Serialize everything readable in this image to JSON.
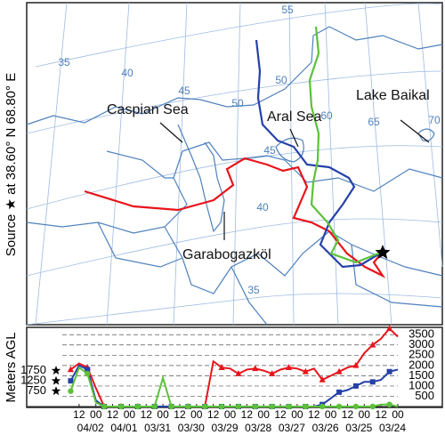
{
  "source_label": "Source ★ at 38.60° N 68.80° E",
  "map": {
    "place_labels": [
      "Caspian Sea",
      "Aral Sea",
      "Lake Baikal",
      "Garabogazköl"
    ],
    "grid_labels": [
      "35",
      "40",
      "45",
      "50",
      "55",
      "50",
      "45",
      "60",
      "65",
      "70",
      "40",
      "35"
    ]
  },
  "chart_data": {
    "type": "line",
    "y_label": "Meters AGL",
    "start_heights": [
      750,
      1250,
      1750
    ],
    "x": [
      6,
      12,
      18,
      24,
      30,
      36,
      42,
      48,
      54,
      60,
      66,
      72,
      78,
      84,
      90,
      96,
      102,
      108,
      114,
      120,
      126,
      132,
      138,
      144,
      150,
      156,
      162,
      168,
      174,
      180,
      186,
      192,
      198,
      204,
      210,
      216,
      222,
      228,
      234,
      240
    ],
    "series": [
      {
        "name": "red",
        "color": "#e8141b",
        "marker": "triangle",
        "values": [
          1800,
          2100,
          1900,
          900,
          0,
          0,
          0,
          0,
          0,
          0,
          0,
          0,
          0,
          0,
          0,
          0,
          0,
          2200,
          1900,
          1850,
          1600,
          1800,
          1850,
          1750,
          1600,
          1800,
          1900,
          1850,
          1700,
          1850,
          1300,
          1500,
          1700,
          1900,
          2000,
          2600,
          3000,
          3300,
          3800,
          3400
        ]
      },
      {
        "name": "blue",
        "color": "#2541a8",
        "marker": "square",
        "values": [
          1250,
          2000,
          1800,
          300,
          0,
          0,
          0,
          0,
          0,
          0,
          0,
          0,
          0,
          0,
          0,
          0,
          0,
          0,
          0,
          0,
          0,
          0,
          0,
          0,
          0,
          0,
          0,
          0,
          0,
          0,
          100,
          400,
          700,
          800,
          1000,
          1200,
          1200,
          1300,
          1700,
          1800
        ]
      },
      {
        "name": "green",
        "color": "#5cc13a",
        "marker": "circle",
        "values": [
          750,
          1900,
          1600,
          200,
          0,
          0,
          0,
          0,
          0,
          0,
          0,
          1400,
          0,
          0,
          0,
          0,
          0,
          0,
          0,
          0,
          0,
          0,
          0,
          0,
          0,
          0,
          0,
          0,
          0,
          0,
          0,
          0,
          0,
          0,
          0,
          0,
          0,
          100,
          100,
          0
        ]
      }
    ],
    "xlim": [
      0,
      240
    ],
    "xticks": [
      {
        "value": 12,
        "label": "12"
      },
      {
        "value": 24,
        "label": "00"
      },
      {
        "value": 36,
        "label": "12"
      },
      {
        "value": 48,
        "label": "00"
      },
      {
        "value": 60,
        "label": "12"
      },
      {
        "value": 72,
        "label": "00"
      },
      {
        "value": 84,
        "label": "12"
      },
      {
        "value": 96,
        "label": "00"
      },
      {
        "value": 108,
        "label": "12"
      },
      {
        "value": 120,
        "label": "00"
      },
      {
        "value": 132,
        "label": "12"
      },
      {
        "value": 144,
        "label": "00"
      },
      {
        "value": 156,
        "label": "12"
      },
      {
        "value": 168,
        "label": "00"
      },
      {
        "value": 180,
        "label": "12"
      },
      {
        "value": 192,
        "label": "00"
      },
      {
        "value": 204,
        "label": "12"
      },
      {
        "value": 216,
        "label": "00"
      },
      {
        "value": 228,
        "label": "12"
      },
      {
        "value": 240,
        "label": "00"
      }
    ],
    "date_labels": [
      {
        "value": 24,
        "label": "04/02"
      },
      {
        "value": 48,
        "label": "04/01"
      },
      {
        "value": 72,
        "label": "03/31"
      },
      {
        "value": 96,
        "label": "03/30"
      },
      {
        "value": 120,
        "label": "03/29"
      },
      {
        "value": 144,
        "label": "03/28"
      },
      {
        "value": 168,
        "label": "03/27"
      },
      {
        "value": 192,
        "label": "03/26"
      },
      {
        "value": 216,
        "label": "03/25"
      },
      {
        "value": 240,
        "label": "03/24"
      }
    ],
    "ylim": [
      0,
      3900
    ],
    "yticks": [
      500,
      1000,
      1500,
      2000,
      2500,
      3000,
      3500
    ],
    "grid": true
  }
}
